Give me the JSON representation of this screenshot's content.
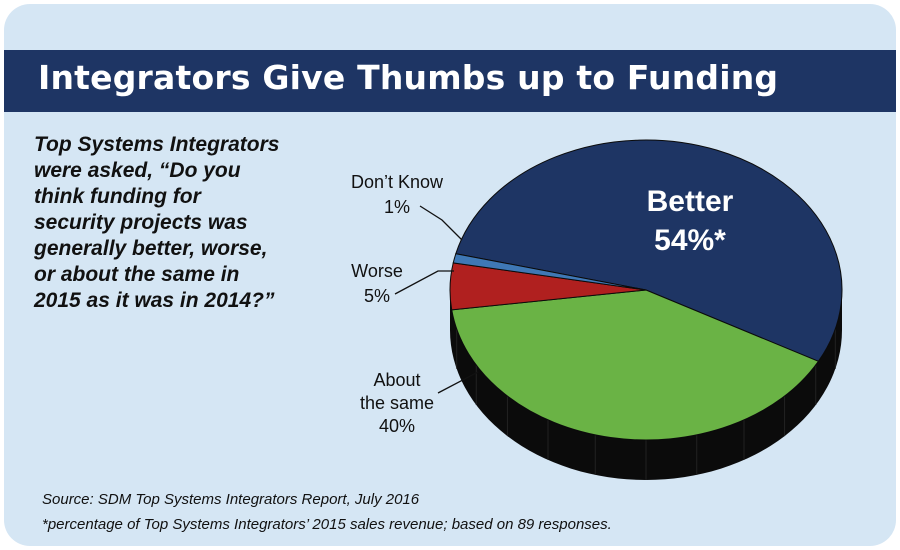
{
  "title": "Integrators Give Thumbs up to Funding",
  "question": "Top Systems Integrators were asked, “Do you think funding for security projects was generally better, worse, or about the same in 2015 as it was in 2014?”",
  "source": "Source: SDM Top Systems Integrators Report, July 2016",
  "footnote": "*percentage of Top Systems Integrators’ 2015 sales revenue; based on 89 responses.",
  "colors": {
    "panel_bg": "#d5e6f4",
    "banner": "#1e3564",
    "better": "#1e3564",
    "about_same": "#6ab345",
    "worse": "#b0201f",
    "dont_know": "#3f78b5",
    "depth": "#0b0b0b"
  },
  "chart_data": {
    "type": "pie",
    "style": "3d",
    "slices": [
      {
        "key": "better",
        "label": "Better",
        "value": 54,
        "display": "54%*"
      },
      {
        "key": "about_same",
        "label": "About the same",
        "value": 40,
        "display": "40%"
      },
      {
        "key": "worse",
        "label": "Worse",
        "value": 5,
        "display": "5%"
      },
      {
        "key": "dont_know",
        "label": "Don’t Know",
        "value": 1,
        "display": "1%"
      }
    ],
    "labels": {
      "better_line1": "Better",
      "better_line2": "54%*",
      "dont_know_line1": "Don’t Know",
      "dont_know_line2": "1%",
      "worse_line1": "Worse",
      "worse_line2": "5%",
      "about_line1": "About",
      "about_line2": "the same",
      "about_line3": "40%"
    }
  }
}
